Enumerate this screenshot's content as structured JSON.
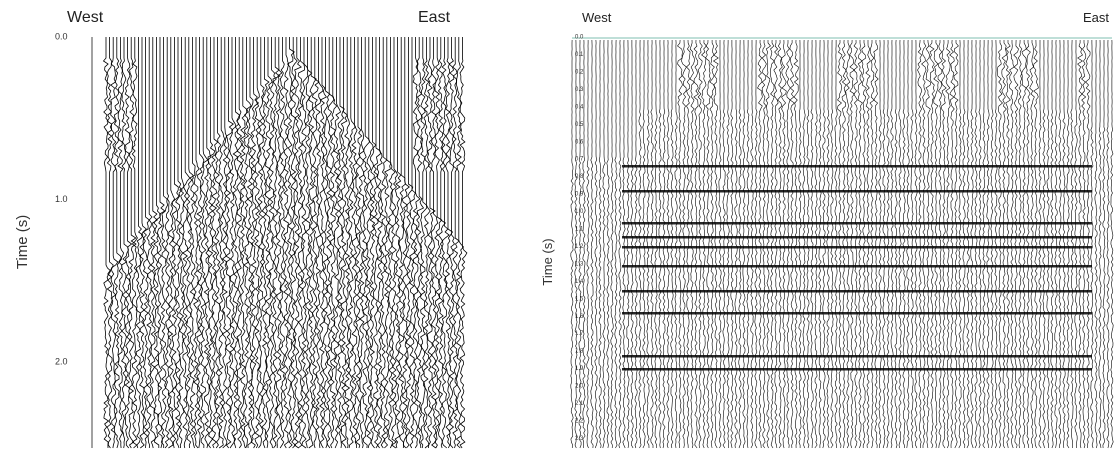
{
  "panels": [
    {
      "west": "West",
      "east": "East",
      "axis_label": "Time (s)",
      "ticks": [
        "0.0",
        "1.0",
        "2.0"
      ]
    },
    {
      "west": "West",
      "east": "East",
      "axis_label": "Time (s)",
      "ticks": [
        "0.0",
        "0.1",
        "0.2",
        "0.3",
        "0.4",
        "0.5",
        "0.6",
        "0.7",
        "0.8",
        "0.9",
        "1.0",
        "1.1",
        "1.2",
        "1.3",
        "1.4",
        "1.5",
        "1.6",
        "1.7",
        "1.8",
        "1.9",
        "2.0",
        "2.1",
        "2.2",
        "2.3"
      ]
    }
  ]
}
